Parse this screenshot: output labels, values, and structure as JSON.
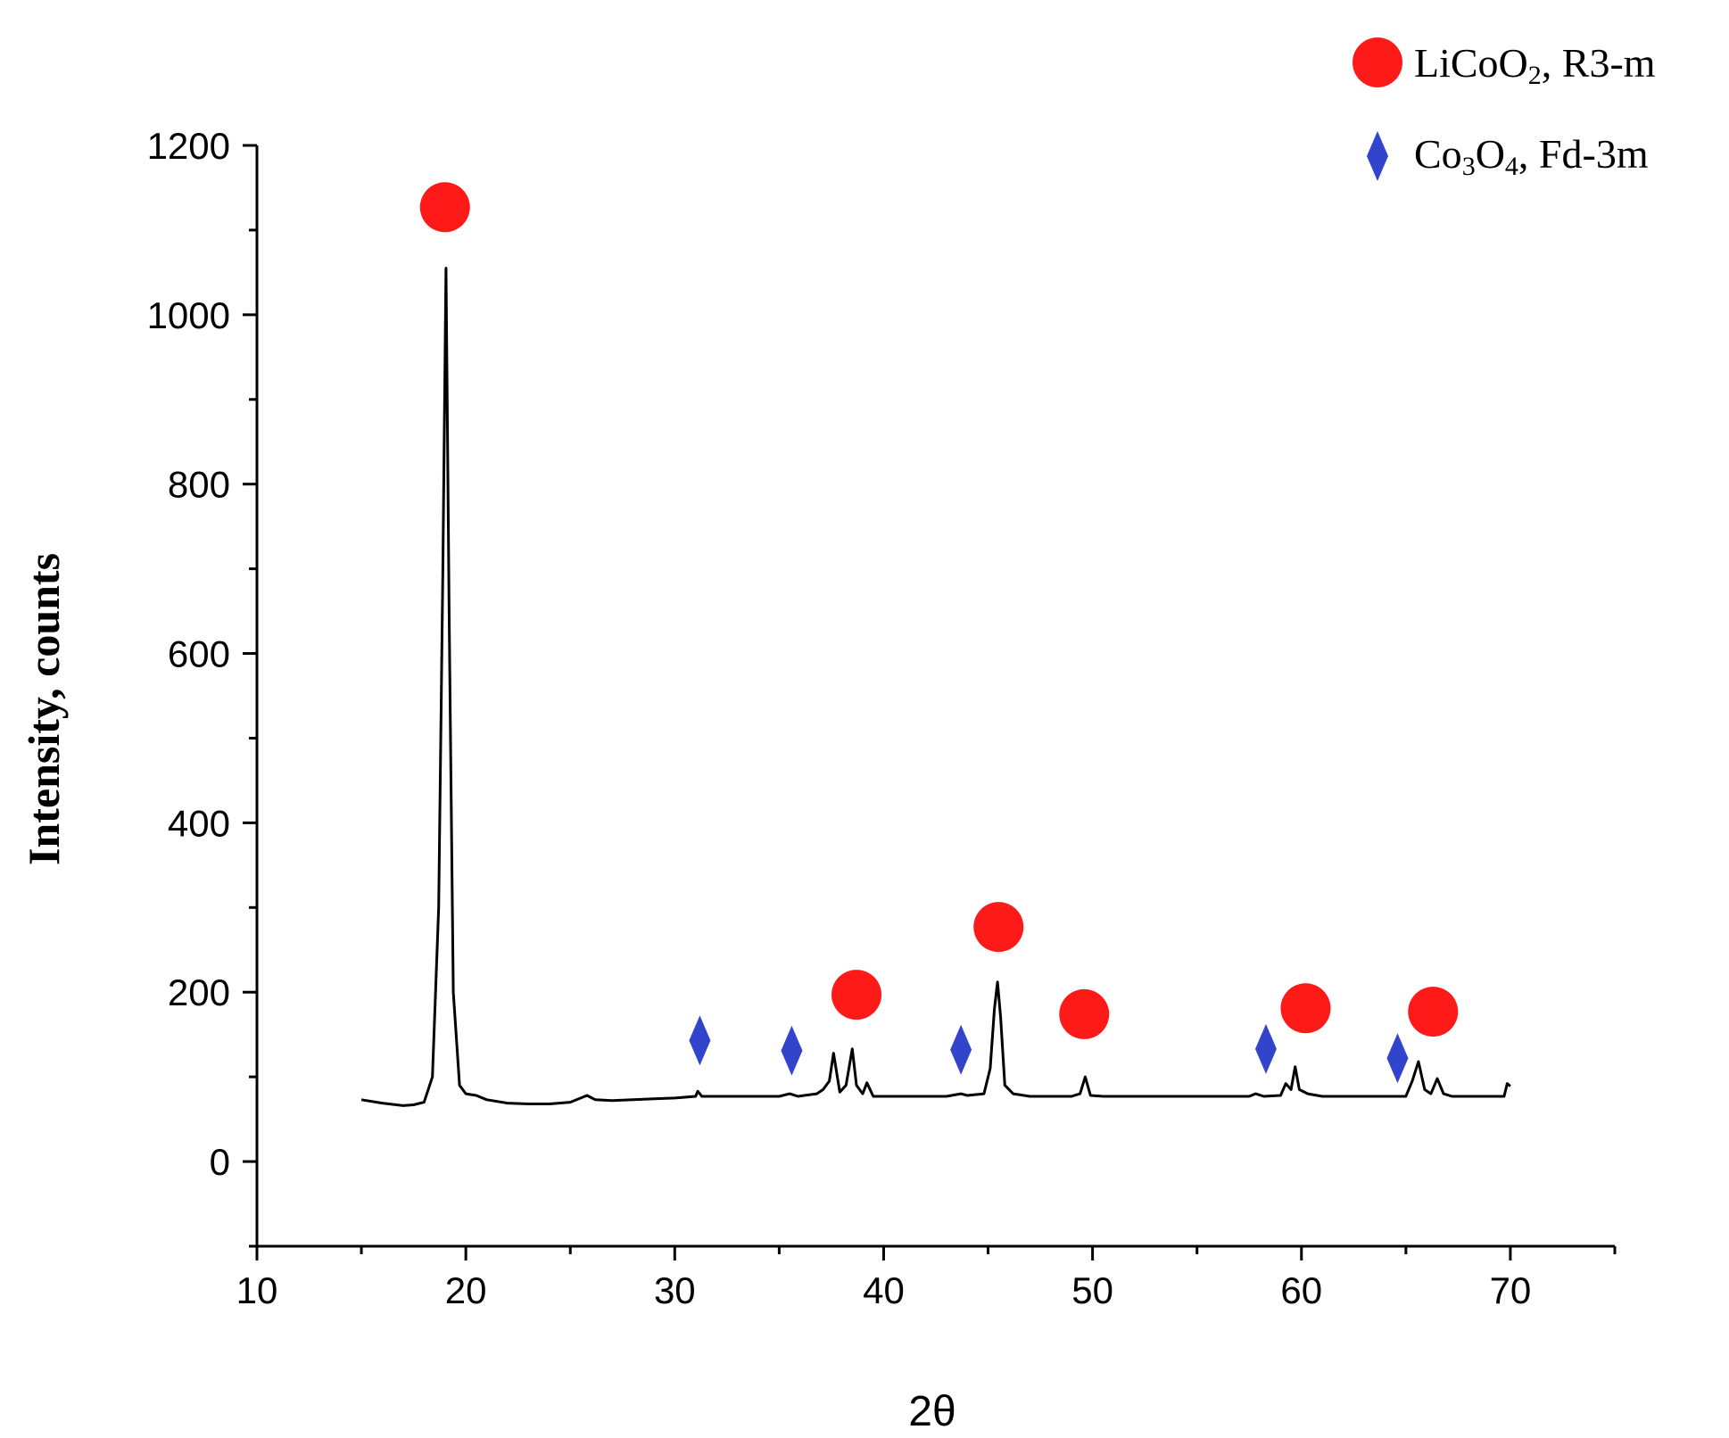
{
  "chart_data": {
    "type": "line",
    "title": "",
    "xlabel": "2θ",
    "ylabel": "Intensity, counts",
    "xlim": [
      10,
      75
    ],
    "ylim": [
      -100,
      1200
    ],
    "x_ticks": [
      10,
      20,
      30,
      40,
      50,
      60,
      70
    ],
    "x_minor_ticks": [
      15,
      25,
      35,
      45,
      55,
      65,
      75
    ],
    "y_ticks": [
      0,
      200,
      400,
      600,
      800,
      1000,
      1200
    ],
    "y_minor_ticks": [
      -100,
      100,
      300,
      500,
      700,
      900,
      1100
    ],
    "grid": false,
    "legend_position": "top-right",
    "colors": {
      "line": "#000000",
      "circle_marker": "#ff1a1a",
      "diamond_marker": "#3344cc"
    },
    "series": [
      {
        "x": [
          15,
          16,
          17,
          17.5,
          18,
          18.4,
          18.7,
          18.9,
          19.05,
          19.2,
          19.4,
          19.7,
          20,
          20.5,
          21,
          22,
          23,
          24,
          25,
          25.8,
          26.2,
          27,
          28,
          29,
          30,
          31,
          31.1,
          31.3,
          32,
          33,
          34,
          35,
          35.5,
          35.9,
          36.2,
          36.8,
          37.1,
          37.4,
          37.6,
          37.9,
          38.2,
          38.5,
          38.7,
          39,
          39.2,
          39.5,
          40,
          41,
          42,
          43,
          43.7,
          44,
          44.8,
          45.1,
          45.3,
          45.45,
          45.6,
          45.8,
          46.2,
          47,
          48,
          49,
          49.4,
          49.65,
          49.9,
          50.5,
          52,
          54,
          56,
          57.5,
          57.8,
          58.2,
          59,
          59.25,
          59.5,
          59.7,
          59.9,
          60.3,
          61,
          62,
          63,
          64,
          65,
          65.3,
          65.6,
          65.9,
          66.2,
          66.5,
          66.8,
          67.2,
          68,
          69,
          69.7,
          69.85,
          70
        ],
        "y": [
          73,
          69,
          66,
          67,
          70,
          100,
          300,
          700,
          1055,
          650,
          200,
          90,
          80,
          78,
          73,
          69,
          68,
          68,
          70,
          78,
          73,
          72,
          73,
          74,
          75,
          77,
          83,
          77,
          77,
          77,
          77,
          77,
          80,
          77,
          78,
          80,
          85,
          95,
          128,
          82,
          90,
          133,
          90,
          80,
          93,
          77,
          77,
          77,
          77,
          77,
          80,
          78,
          80,
          110,
          180,
          212,
          170,
          90,
          80,
          77,
          77,
          77,
          80,
          100,
          78,
          77,
          77,
          77,
          77,
          77,
          80,
          77,
          78,
          92,
          85,
          112,
          85,
          80,
          77,
          77,
          77,
          77,
          77,
          95,
          118,
          85,
          80,
          98,
          80,
          77,
          77,
          77,
          77,
          92,
          89
        ]
      }
    ],
    "markers": [
      {
        "shape": "circle",
        "phase": "LiCoO2",
        "x": 19.0,
        "y": 1127
      },
      {
        "shape": "circle",
        "phase": "LiCoO2",
        "x": 38.7,
        "y": 197
      },
      {
        "shape": "circle",
        "phase": "LiCoO2",
        "x": 45.5,
        "y": 277
      },
      {
        "shape": "circle",
        "phase": "LiCoO2",
        "x": 49.6,
        "y": 174
      },
      {
        "shape": "circle",
        "phase": "LiCoO2",
        "x": 60.2,
        "y": 181
      },
      {
        "shape": "circle",
        "phase": "LiCoO2",
        "x": 66.3,
        "y": 177
      },
      {
        "shape": "diamond",
        "phase": "Co3O4",
        "x": 31.2,
        "y": 143
      },
      {
        "shape": "diamond",
        "phase": "Co3O4",
        "x": 35.6,
        "y": 131
      },
      {
        "shape": "diamond",
        "phase": "Co3O4",
        "x": 43.7,
        "y": 132
      },
      {
        "shape": "diamond",
        "phase": "Co3O4",
        "x": 58.3,
        "y": 133
      },
      {
        "shape": "diamond",
        "phase": "Co3O4",
        "x": 64.6,
        "y": 122
      }
    ],
    "legend": [
      {
        "label_main": "LiCoO",
        "label_sub": "2",
        "label_rest": ", R3-m",
        "marker": "circle"
      },
      {
        "label_main": "Co",
        "label_sub": "3",
        "label_mid": "O",
        "label_sub2": "4",
        "label_rest": ", Fd-3m",
        "marker": "diamond"
      }
    ]
  }
}
